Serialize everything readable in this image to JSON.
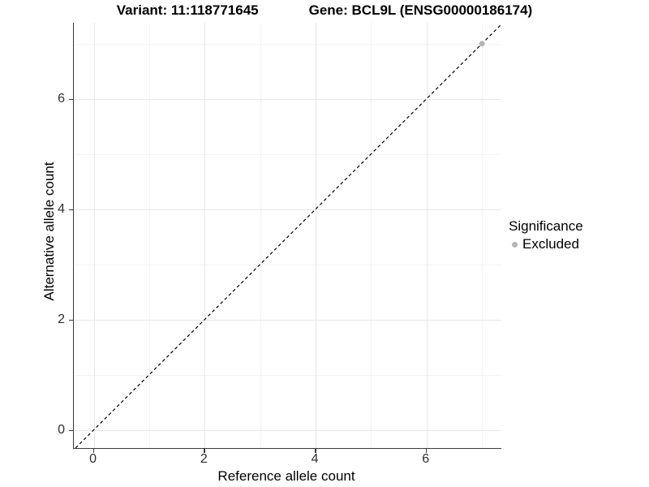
{
  "title": {
    "left": "Variant: 11:118771645",
    "right": "Gene: BCL9L (ENSG00000186174)"
  },
  "chart_data": {
    "type": "scatter",
    "title": "Variant: 11:118771645   Gene: BCL9L (ENSG00000186174)",
    "xlabel": "Reference allele count",
    "ylabel": "Alternative allele count",
    "xlim": [
      -0.36,
      7.35
    ],
    "ylim": [
      -0.33,
      7.38
    ],
    "xticks": [
      0,
      2,
      4,
      6
    ],
    "yticks": [
      0,
      2,
      4,
      6
    ],
    "minor_xticks": [
      1,
      3,
      5,
      7
    ],
    "minor_yticks": [
      1,
      3,
      5,
      7
    ],
    "grid": true,
    "identity_line": {
      "style": "dashed",
      "color": "#000000",
      "from": -0.33,
      "to": 7.37
    },
    "series": [
      {
        "name": "Excluded",
        "color": "#b5b5b5",
        "points": [
          {
            "x": 7,
            "y": 7
          }
        ]
      }
    ],
    "legend": {
      "title": "Significance",
      "position": "right",
      "entries": [
        {
          "label": "Excluded",
          "color": "#b5b5b5"
        }
      ]
    },
    "colors": {
      "axis_line": "#3a3a3a",
      "major_grid": "#e7e7e7",
      "minor_grid": "#f3f3f3",
      "tick_label": "#2e2e2e",
      "background": "#ffffff"
    }
  }
}
